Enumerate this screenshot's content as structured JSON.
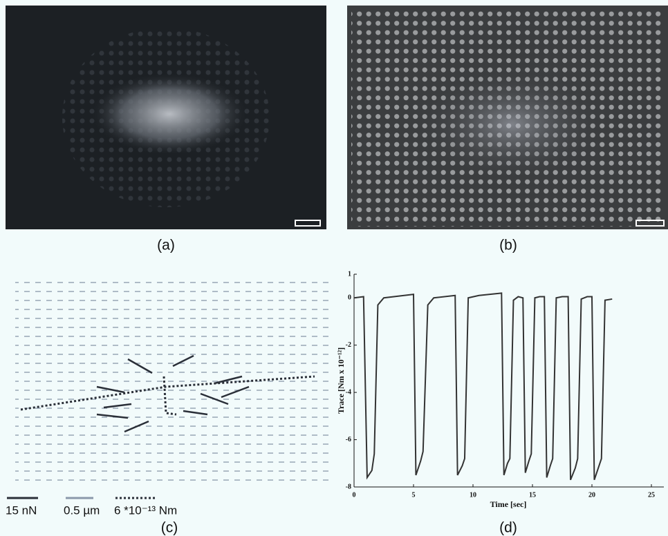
{
  "panels": [
    "(a)",
    "(b)",
    "(c)",
    "(d)"
  ],
  "legend_c": [
    "15 nN",
    "0.5 µm",
    "6 *10⁻¹³ Nm"
  ],
  "chart_data": {
    "type": "line",
    "xlabel": "Time [sec]",
    "ylabel": "Trace [Nm x 10⁻¹²]",
    "x": [
      0,
      0.8,
      1.1,
      1.5,
      1.7,
      2.0,
      2.5,
      5.0,
      5.2,
      5.6,
      5.8,
      6.2,
      6.7,
      8.5,
      8.7,
      9.1,
      9.3,
      9.6,
      10.5,
      12.4,
      12.6,
      12.9,
      13.1,
      13.4,
      13.8,
      14.2,
      14.4,
      14.7,
      14.9,
      15.2,
      15.6,
      16.0,
      16.2,
      16.5,
      16.7,
      17.0,
      17.5,
      18.0,
      18.2,
      18.6,
      18.8,
      19.1,
      19.6,
      20.0,
      20.2,
      20.6,
      20.8,
      21.1,
      21.7
    ],
    "series": [
      {
        "color": "#333333",
        "values": [
          0,
          0.05,
          -7.6,
          -7.3,
          -6.6,
          -0.3,
          0,
          0.15,
          -7.5,
          -6.9,
          -6.5,
          -0.3,
          0,
          0.1,
          -7.5,
          -7.1,
          -6.8,
          0,
          0.1,
          0.2,
          -7.5,
          -7.0,
          -6.8,
          -0.1,
          0.05,
          0,
          -7.4,
          -6.9,
          -6.6,
          0,
          0.05,
          0.05,
          -7.6,
          -7.1,
          -6.8,
          0,
          0.05,
          0.05,
          -7.7,
          -7.2,
          -6.8,
          -0.05,
          0.05,
          0.05,
          -7.7,
          -7.1,
          -6.8,
          -0.1,
          -0.05
        ]
      }
    ],
    "xlim": [
      0,
      25
    ],
    "xticks": [
      0,
      5,
      10,
      15,
      20,
      25
    ],
    "ylim": [
      -8,
      1
    ],
    "yticks": [
      1,
      0,
      -2,
      -4,
      -6,
      -8
    ]
  }
}
